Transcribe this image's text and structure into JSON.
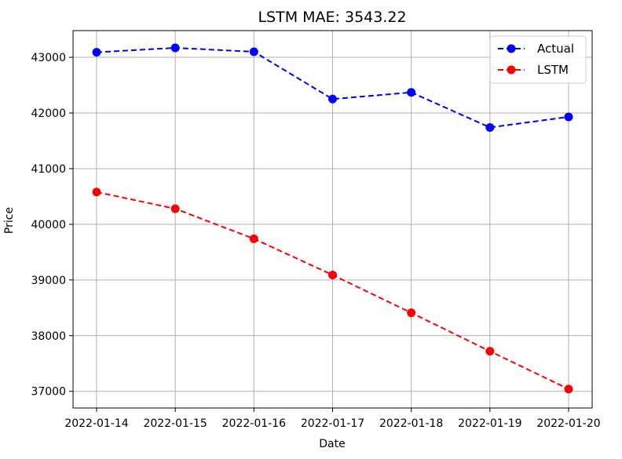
{
  "chart_data": {
    "type": "line",
    "title": "LSTM MAE: 3543.22",
    "xlabel": "Date",
    "ylabel": "Price",
    "categories": [
      "2022-01-14",
      "2022-01-15",
      "2022-01-16",
      "2022-01-17",
      "2022-01-18",
      "2022-01-19",
      "2022-01-20"
    ],
    "yticks": [
      "37000",
      "38000",
      "39000",
      "40000",
      "41000",
      "42000",
      "43000"
    ],
    "ylim": [
      36700,
      43480
    ],
    "grid": true,
    "legend_position": "top-right",
    "series": [
      {
        "name": "Actual",
        "color": "#0000ff",
        "values": [
          43090,
          43170,
          43100,
          42250,
          42370,
          41740,
          41930
        ]
      },
      {
        "name": "LSTM",
        "color": "#ff0000",
        "values": [
          40580,
          40280,
          39740,
          39090,
          38410,
          37720,
          37040
        ]
      }
    ]
  }
}
